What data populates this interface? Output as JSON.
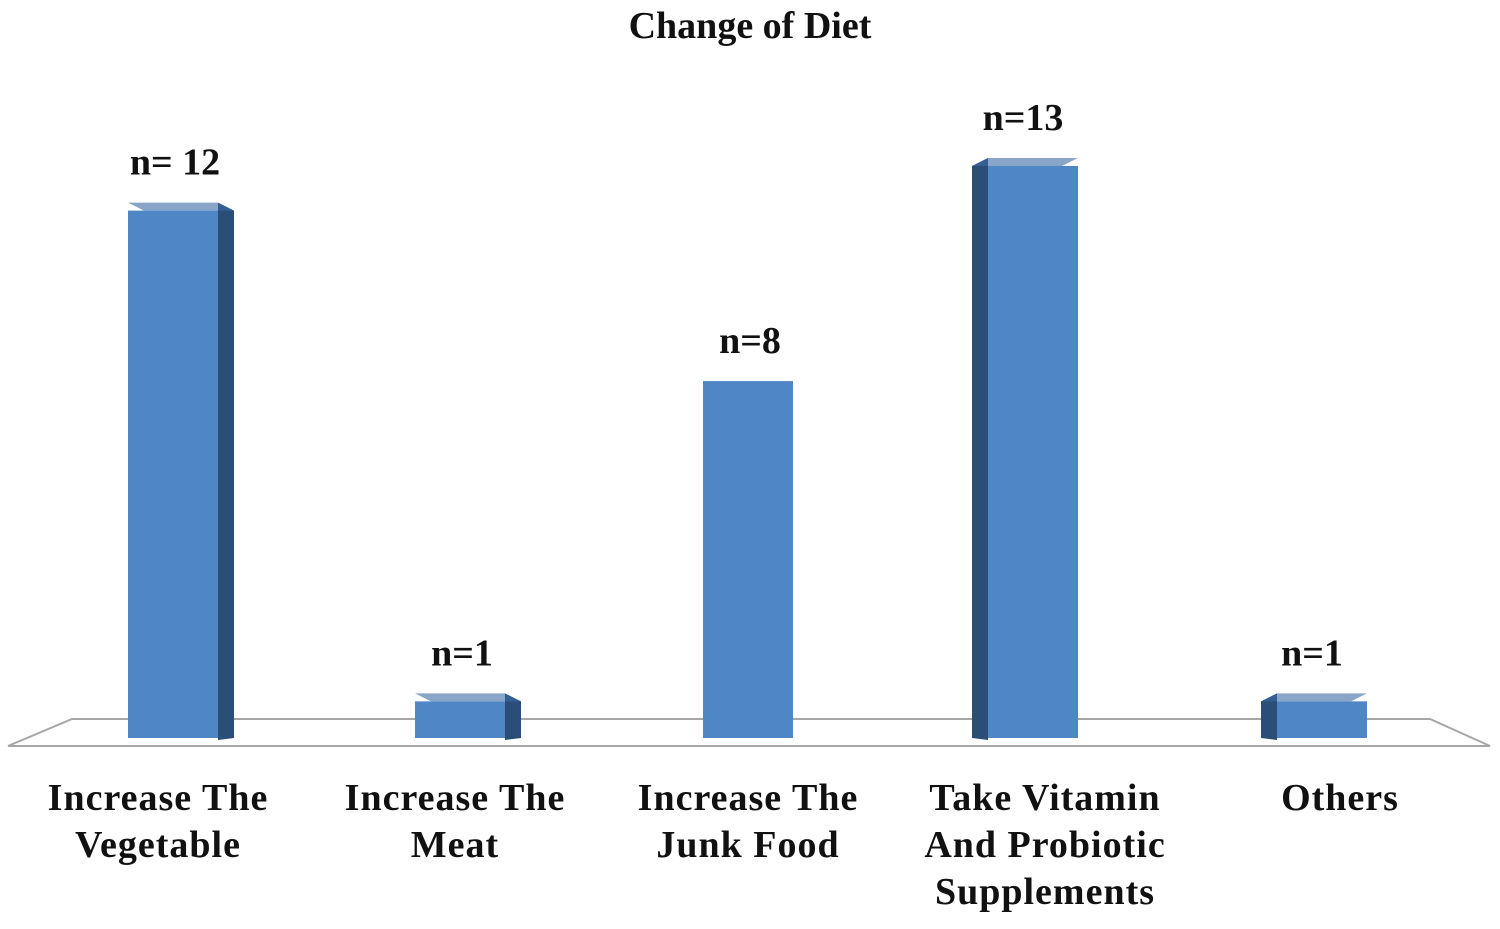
{
  "chart_data": {
    "type": "bar",
    "title": "Change of Diet",
    "xlabel": "",
    "ylabel": "",
    "ylim": [
      0,
      13
    ],
    "grid": false,
    "categories": [
      [
        "Increase The",
        "Vegetable"
      ],
      [
        "Increase The",
        "Meat"
      ],
      [
        "Increase The",
        "Junk Food"
      ],
      [
        "Take Vitamin",
        "And Probiotic",
        "Supplements"
      ],
      [
        "Others"
      ]
    ],
    "values": [
      12,
      1,
      8,
      13,
      1
    ],
    "data_labels": [
      "n= 12",
      "n=1",
      "n=8",
      "n=13",
      "n=1"
    ]
  },
  "colors": {
    "bar_front": "#4f86c6",
    "bar_side": "#2b4e78",
    "bar_top": "#3a6aa3",
    "floor_stroke": "#a6a6a6",
    "text": "#111111"
  }
}
